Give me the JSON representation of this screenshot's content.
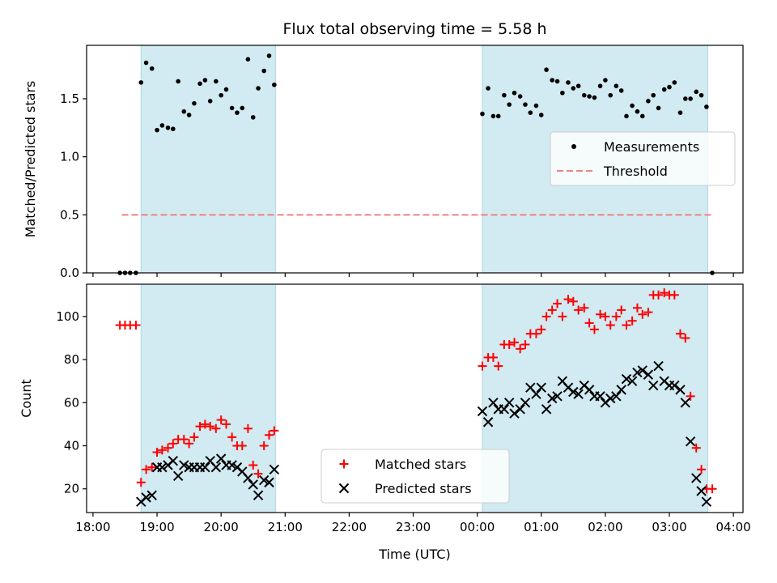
{
  "chart_data": [
    {
      "panel": "top",
      "type": "scatter",
      "title": "Flux total observing time = 5.58 h",
      "xlabel": "",
      "ylabel": "Matched/Predicted stars",
      "ylim": [
        0,
        1.96
      ],
      "yticks": [
        0.0,
        0.5,
        1.0,
        1.5
      ],
      "ytick_labels": [
        "0.0",
        "0.5",
        "1.0",
        "1.5"
      ],
      "shaded_intervals": [
        [
          18.75,
          20.85
        ],
        [
          24.08,
          27.6
        ]
      ],
      "shade_color": "#add8e6",
      "threshold": {
        "name": "Threshold",
        "value": 0.5,
        "x_range": [
          18.45,
          27.65
        ],
        "color": "#f08080"
      },
      "legend": {
        "placement": "center-right",
        "entries": [
          "Measurements",
          "Threshold"
        ]
      },
      "series": [
        {
          "name": "Measurements",
          "color": "#000000",
          "points": [
            [
              18.42,
              0.0
            ],
            [
              18.5,
              0.0
            ],
            [
              18.58,
              0.0
            ],
            [
              18.67,
              0.0
            ],
            [
              18.75,
              1.64
            ],
            [
              18.83,
              1.81
            ],
            [
              18.92,
              1.76
            ],
            [
              19.0,
              1.23
            ],
            [
              19.08,
              1.27
            ],
            [
              19.17,
              1.25
            ],
            [
              19.25,
              1.24
            ],
            [
              19.33,
              1.65
            ],
            [
              19.42,
              1.39
            ],
            [
              19.5,
              1.36
            ],
            [
              19.58,
              1.46
            ],
            [
              19.67,
              1.63
            ],
            [
              19.75,
              1.66
            ],
            [
              19.83,
              1.48
            ],
            [
              19.92,
              1.65
            ],
            [
              20.0,
              1.53
            ],
            [
              20.08,
              1.58
            ],
            [
              20.17,
              1.42
            ],
            [
              20.25,
              1.38
            ],
            [
              20.33,
              1.42
            ],
            [
              20.42,
              1.84
            ],
            [
              20.5,
              1.34
            ],
            [
              20.58,
              1.59
            ],
            [
              20.67,
              1.74
            ],
            [
              20.75,
              1.87
            ],
            [
              20.83,
              1.62
            ],
            [
              24.08,
              1.37
            ],
            [
              24.17,
              1.59
            ],
            [
              24.25,
              1.35
            ],
            [
              24.33,
              1.35
            ],
            [
              24.42,
              1.53
            ],
            [
              24.5,
              1.45
            ],
            [
              24.58,
              1.55
            ],
            [
              24.67,
              1.52
            ],
            [
              24.75,
              1.45
            ],
            [
              24.83,
              1.38
            ],
            [
              24.92,
              1.44
            ],
            [
              25.0,
              1.36
            ],
            [
              25.08,
              1.75
            ],
            [
              25.17,
              1.66
            ],
            [
              25.25,
              1.65
            ],
            [
              25.33,
              1.55
            ],
            [
              25.42,
              1.64
            ],
            [
              25.5,
              1.59
            ],
            [
              25.58,
              1.61
            ],
            [
              25.67,
              1.53
            ],
            [
              25.75,
              1.52
            ],
            [
              25.83,
              1.51
            ],
            [
              25.92,
              1.61
            ],
            [
              26.0,
              1.66
            ],
            [
              26.08,
              1.53
            ],
            [
              26.17,
              1.61
            ],
            [
              26.25,
              1.57
            ],
            [
              26.33,
              1.35
            ],
            [
              26.42,
              1.44
            ],
            [
              26.5,
              1.39
            ],
            [
              26.58,
              1.35
            ],
            [
              26.67,
              1.48
            ],
            [
              26.75,
              1.53
            ],
            [
              26.83,
              1.42
            ],
            [
              26.92,
              1.58
            ],
            [
              27.0,
              1.6
            ],
            [
              27.08,
              1.64
            ],
            [
              27.17,
              1.38
            ],
            [
              27.25,
              1.5
            ],
            [
              27.33,
              1.5
            ],
            [
              27.42,
              1.56
            ],
            [
              27.5,
              1.53
            ],
            [
              27.58,
              1.43
            ],
            [
              27.67,
              0.0
            ]
          ]
        }
      ]
    },
    {
      "panel": "bottom",
      "type": "scatter",
      "title": "",
      "xlabel": "Time (UTC)",
      "ylabel": "Count",
      "xlim": [
        17.9,
        28.15
      ],
      "ylim": [
        9,
        115
      ],
      "yticks": [
        20,
        40,
        60,
        80,
        100
      ],
      "ytick_labels": [
        "20",
        "40",
        "60",
        "80",
        "100"
      ],
      "xticks": [
        18,
        19,
        20,
        21,
        22,
        23,
        24,
        25,
        26,
        27,
        28
      ],
      "xtick_labels": [
        "18:00",
        "19:00",
        "20:00",
        "21:00",
        "22:00",
        "23:00",
        "00:00",
        "01:00",
        "02:00",
        "03:00",
        "04:00"
      ],
      "shaded_intervals": [
        [
          18.75,
          20.85
        ],
        [
          24.08,
          27.6
        ]
      ],
      "shade_color": "#add8e6",
      "legend": {
        "placement": "lower-center",
        "entries": [
          "Matched stars",
          "Predicted stars"
        ]
      },
      "series": [
        {
          "name": "Matched stars",
          "marker": "plus",
          "color": "#ff0000",
          "points": [
            [
              18.42,
              96
            ],
            [
              18.5,
              96
            ],
            [
              18.58,
              96
            ],
            [
              18.67,
              96
            ],
            [
              18.75,
              23
            ],
            [
              18.83,
              29
            ],
            [
              18.92,
              30
            ],
            [
              19.0,
              37
            ],
            [
              19.08,
              38
            ],
            [
              19.17,
              39
            ],
            [
              19.25,
              41
            ],
            [
              19.33,
              43
            ],
            [
              19.42,
              43
            ],
            [
              19.5,
              41
            ],
            [
              19.58,
              44
            ],
            [
              19.67,
              49
            ],
            [
              19.75,
              50
            ],
            [
              19.83,
              49
            ],
            [
              19.92,
              48
            ],
            [
              20.0,
              52
            ],
            [
              20.08,
              50
            ],
            [
              20.17,
              44
            ],
            [
              20.25,
              40
            ],
            [
              20.33,
              40
            ],
            [
              20.42,
              48
            ],
            [
              20.5,
              31
            ],
            [
              20.58,
              27
            ],
            [
              20.67,
              40
            ],
            [
              20.75,
              45
            ],
            [
              20.83,
              47
            ],
            [
              24.08,
              77
            ],
            [
              24.17,
              81
            ],
            [
              24.25,
              81
            ],
            [
              24.33,
              77
            ],
            [
              24.42,
              87
            ],
            [
              24.5,
              87
            ],
            [
              24.58,
              88
            ],
            [
              24.67,
              85
            ],
            [
              24.75,
              87
            ],
            [
              24.83,
              92
            ],
            [
              24.92,
              92
            ],
            [
              25.0,
              94
            ],
            [
              25.08,
              100
            ],
            [
              25.17,
              103
            ],
            [
              25.25,
              106
            ],
            [
              25.33,
              100
            ],
            [
              25.42,
              108
            ],
            [
              25.5,
              107
            ],
            [
              25.58,
              103
            ],
            [
              25.67,
              104
            ],
            [
              25.75,
              97
            ],
            [
              25.83,
              94
            ],
            [
              25.92,
              101
            ],
            [
              26.0,
              100
            ],
            [
              26.08,
              96
            ],
            [
              26.17,
              100
            ],
            [
              26.25,
              103
            ],
            [
              26.33,
              96
            ],
            [
              26.42,
              98
            ],
            [
              26.5,
              104
            ],
            [
              26.58,
              101
            ],
            [
              26.67,
              102
            ],
            [
              26.75,
              110
            ],
            [
              26.83,
              110
            ],
            [
              26.92,
              111
            ],
            [
              27.0,
              110
            ],
            [
              27.08,
              110
            ],
            [
              27.17,
              92
            ],
            [
              27.25,
              90
            ],
            [
              27.33,
              63
            ],
            [
              27.42,
              39
            ],
            [
              27.5,
              29
            ],
            [
              27.58,
              20
            ],
            [
              27.67,
              20
            ]
          ]
        },
        {
          "name": "Predicted stars",
          "marker": "x",
          "color": "#000000",
          "points": [
            [
              18.75,
              14
            ],
            [
              18.83,
              16
            ],
            [
              18.92,
              17
            ],
            [
              19.0,
              30
            ],
            [
              19.08,
              30
            ],
            [
              19.17,
              31
            ],
            [
              19.25,
              33
            ],
            [
              19.33,
              26
            ],
            [
              19.42,
              31
            ],
            [
              19.5,
              30
            ],
            [
              19.58,
              30
            ],
            [
              19.67,
              30
            ],
            [
              19.75,
              30
            ],
            [
              19.83,
              33
            ],
            [
              19.92,
              30
            ],
            [
              20.0,
              34
            ],
            [
              20.08,
              31
            ],
            [
              20.17,
              31
            ],
            [
              20.25,
              30
            ],
            [
              20.33,
              28
            ],
            [
              20.42,
              25
            ],
            [
              20.5,
              22
            ],
            [
              20.58,
              17
            ],
            [
              20.67,
              24
            ],
            [
              20.75,
              23
            ],
            [
              20.83,
              29
            ],
            [
              24.08,
              56
            ],
            [
              24.17,
              51
            ],
            [
              24.25,
              60
            ],
            [
              24.33,
              57
            ],
            [
              24.42,
              57
            ],
            [
              24.5,
              60
            ],
            [
              24.58,
              55
            ],
            [
              24.67,
              57
            ],
            [
              24.75,
              60
            ],
            [
              24.83,
              67
            ],
            [
              24.92,
              64
            ],
            [
              25.0,
              67
            ],
            [
              25.08,
              57
            ],
            [
              25.17,
              62
            ],
            [
              25.25,
              63
            ],
            [
              25.33,
              70
            ],
            [
              25.42,
              67
            ],
            [
              25.5,
              65
            ],
            [
              25.58,
              64
            ],
            [
              25.67,
              68
            ],
            [
              25.75,
              66
            ],
            [
              25.83,
              63
            ],
            [
              25.92,
              63
            ],
            [
              26.0,
              60
            ],
            [
              26.08,
              62
            ],
            [
              26.17,
              63
            ],
            [
              26.25,
              66
            ],
            [
              26.33,
              71
            ],
            [
              26.42,
              70
            ],
            [
              26.5,
              74
            ],
            [
              26.58,
              75
            ],
            [
              26.67,
              73
            ],
            [
              26.75,
              68
            ],
            [
              26.83,
              77
            ],
            [
              26.92,
              70
            ],
            [
              27.0,
              68
            ],
            [
              27.08,
              68
            ],
            [
              27.17,
              66
            ],
            [
              27.25,
              60
            ],
            [
              27.33,
              42
            ],
            [
              27.42,
              25
            ],
            [
              27.5,
              19
            ],
            [
              27.58,
              14
            ]
          ]
        }
      ]
    }
  ]
}
